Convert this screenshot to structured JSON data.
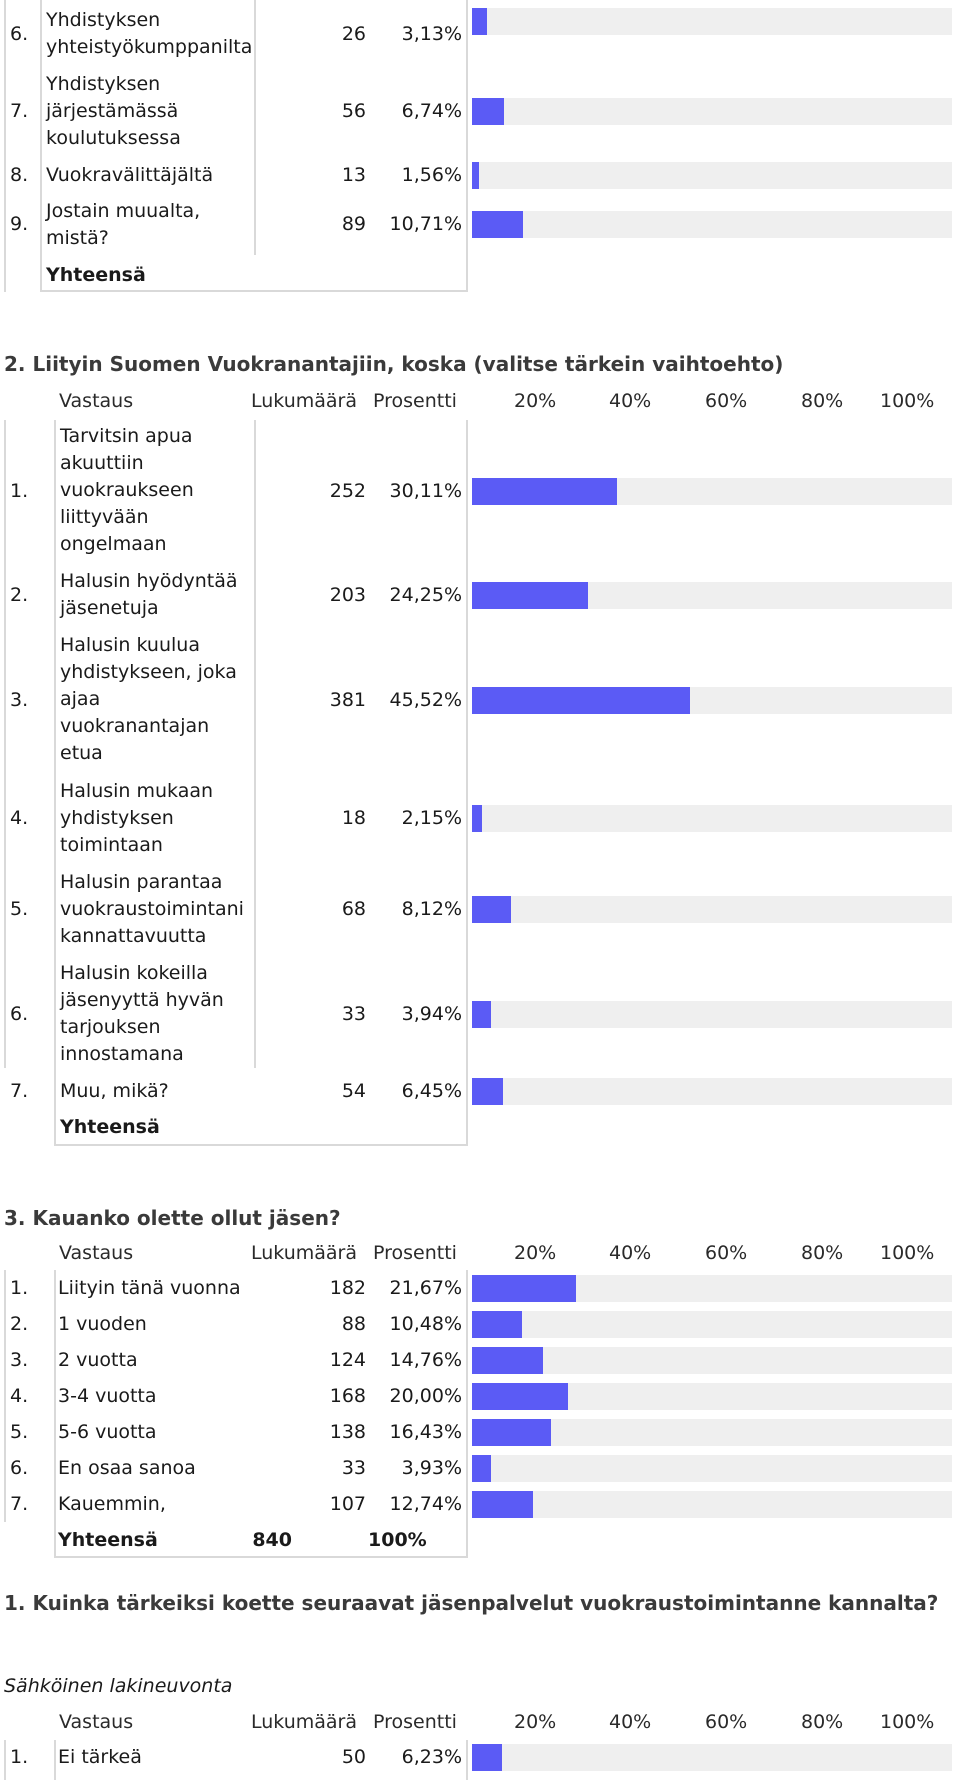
{
  "q1_tail": {
    "rows": [
      {
        "num": "6.",
        "label_lines": [
          "Yhdistyksen",
          "yhteistyökumppanilta"
        ],
        "count": "26",
        "pct": "3,13%",
        "value": 3.13
      },
      {
        "num": "7.",
        "label_lines": [
          "Yhdistyksen",
          "järjestämässä",
          "koulutuksessa"
        ],
        "count": "56",
        "pct": "6,74%",
        "value": 6.74
      },
      {
        "num": "8.",
        "label_lines": [
          "Vuokravälittäjältä"
        ],
        "count": "13",
        "pct": "1,56%",
        "value": 1.56
      },
      {
        "num": "9.",
        "label_lines": [
          "Jostain muualta,",
          "mistä?"
        ],
        "count": "89",
        "pct": "10,71%",
        "value": 10.71
      }
    ],
    "total_label": "Yhteensä"
  },
  "q2": {
    "title": "2. Liityin Suomen Vuokranantajiin, koska (valitse tärkein vaihtoehto)",
    "headers": {
      "answer": "Vastaus",
      "count": "Lukumäärä",
      "percent": "Prosentti",
      "p20": "20%",
      "p40": "40%",
      "p60": "60%",
      "p80": "80%",
      "p100": "100%"
    },
    "rows": [
      {
        "num": "1.",
        "label_lines": [
          "Tarvitsin apua",
          "akuuttiin",
          "vuokraukseen",
          "liittyvään",
          "ongelmaan"
        ],
        "count": "252",
        "pct": "30,11%",
        "value": 30.11
      },
      {
        "num": "2.",
        "label_lines": [
          "Halusin hyödyntää",
          "jäsenetuja"
        ],
        "count": "203",
        "pct": "24,25%",
        "value": 24.25
      },
      {
        "num": "3.",
        "label_lines": [
          "Halusin kuulua",
          "yhdistykseen, joka",
          "ajaa",
          "vuokranantajan",
          "etua"
        ],
        "count": "381",
        "pct": "45,52%",
        "value": 45.52
      },
      {
        "num": "4.",
        "label_lines": [
          "Halusin mukaan",
          "yhdistyksen",
          "toimintaan"
        ],
        "count": "18",
        "pct": "2,15%",
        "value": 2.15
      },
      {
        "num": "5.",
        "label_lines": [
          "Halusin parantaa",
          "vuokraustoimintani",
          "kannattavuutta"
        ],
        "count": "68",
        "pct": "8,12%",
        "value": 8.12
      },
      {
        "num": "6.",
        "label_lines": [
          "Halusin kokeilla",
          "jäsenyyttä hyvän",
          "tarjouksen",
          "innostamana"
        ],
        "count": "33",
        "pct": "3,94%",
        "value": 3.94
      },
      {
        "num": "7.",
        "label_lines": [
          "Muu, mikä?"
        ],
        "count": "54",
        "pct": "6,45%",
        "value": 6.45
      }
    ],
    "total_label": "Yhteensä"
  },
  "q3": {
    "title": "3. Kauanko olette ollut jäsen?",
    "headers": {
      "answer": "Vastaus",
      "count": "Lukumäärä",
      "percent": "Prosentti",
      "p20": "20%",
      "p40": "40%",
      "p60": "60%",
      "p80": "80%",
      "p100": "100%"
    },
    "rows": [
      {
        "num": "1.",
        "label": "Liityin tänä vuonna",
        "count": "182",
        "pct": "21,67%",
        "value": 21.67
      },
      {
        "num": "2.",
        "label": "1 vuoden",
        "count": "88",
        "pct": "10,48%",
        "value": 10.48
      },
      {
        "num": "3.",
        "label": "2 vuotta",
        "count": "124",
        "pct": "14,76%",
        "value": 14.76
      },
      {
        "num": "4.",
        "label": "3-4 vuotta",
        "count": "168",
        "pct": "20,00%",
        "value": 20.0
      },
      {
        "num": "5.",
        "label": "5-6 vuotta",
        "count": "138",
        "pct": "16,43%",
        "value": 16.43
      },
      {
        "num": "6.",
        "label": "En osaa sanoa",
        "count": "33",
        "pct": "3,93%",
        "value": 3.93
      },
      {
        "num": "7.",
        "label": "Kauemmin,",
        "count": "107",
        "pct": "12,74%",
        "value": 12.74
      }
    ],
    "total": {
      "label": "Yhteensä",
      "count": "840",
      "pct": "100%"
    }
  },
  "section4": {
    "title": "1. Kuinka tärkeiksi koette seuraavat jäsenpalvelut vuokraustoimintanne kannalta?",
    "subtitle": "Sähköinen lakineuvonta",
    "headers": {
      "answer": "Vastaus",
      "count": "Lukumäärä",
      "percent": "Prosentti",
      "p20": "20%",
      "p40": "40%",
      "p60": "60%",
      "p80": "80%",
      "p100": "100%"
    },
    "rows": [
      {
        "num": "1.",
        "label": "Ei tärkeä",
        "count": "50",
        "pct": "6,23%",
        "value": 6.23
      }
    ]
  },
  "colors": {
    "bar": "#5b5bf5",
    "track": "#efefef",
    "grid": "#d9d9d9"
  }
}
